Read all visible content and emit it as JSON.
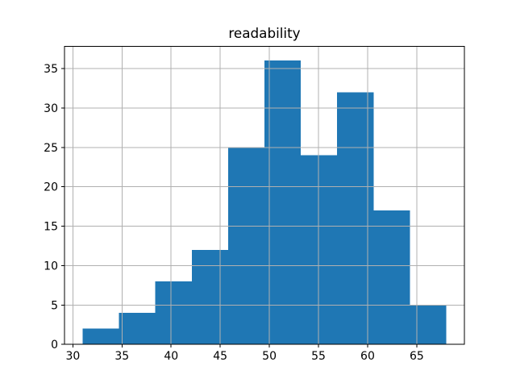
{
  "chart_data": {
    "type": "bar",
    "subtype": "histogram",
    "title": "readability",
    "xlabel": "",
    "ylabel": "",
    "bin_edges": [
      31.0,
      34.7,
      38.4,
      42.1,
      45.8,
      49.5,
      53.2,
      56.9,
      60.6,
      64.3,
      68.0
    ],
    "values": [
      2,
      4,
      8,
      12,
      25,
      36,
      24,
      32,
      17,
      5
    ],
    "xticks": [
      30,
      35,
      40,
      45,
      50,
      55,
      60,
      65
    ],
    "yticks": [
      0,
      5,
      10,
      15,
      20,
      25,
      30,
      35
    ],
    "xlim": [
      29.15,
      69.85
    ],
    "ylim": [
      0,
      37.8
    ],
    "grid": true,
    "legend": false,
    "colors": {
      "bar": "#1f77b4",
      "grid": "#b0b0b0",
      "axis": "#000000",
      "text": "#000000",
      "background": "#ffffff"
    }
  }
}
